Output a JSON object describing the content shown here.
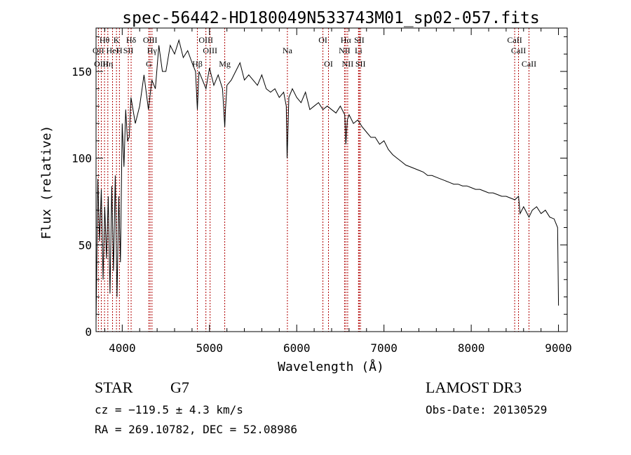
{
  "chart_data": {
    "type": "line",
    "title": "spec-56442-HD180049N533743M01_sp02-057.fits",
    "xlabel": "Wavelength (Å)",
    "ylabel": "Flux (relative)",
    "xlim": [
      3700,
      9100
    ],
    "ylim": [
      0,
      175
    ],
    "xticks": [
      4000,
      5000,
      6000,
      7000,
      8000,
      9000
    ],
    "yticks": [
      0,
      50,
      100,
      150
    ],
    "xtick_labels": [
      "4000",
      "5000",
      "6000",
      "7000",
      "8000",
      "9000"
    ],
    "ytick_labels": [
      "0",
      "50",
      "100",
      "150"
    ],
    "grid": false,
    "series": [
      {
        "x": [
          3700,
          3720,
          3740,
          3760,
          3780,
          3800,
          3820,
          3840,
          3860,
          3880,
          3900,
          3920,
          3940,
          3960,
          3980,
          4000,
          4020,
          4040,
          4060,
          4080,
          4100,
          4150,
          4200,
          4250,
          4300,
          4340,
          4380,
          4420,
          4460,
          4500,
          4550,
          4600,
          4650,
          4700,
          4750,
          4800,
          4840,
          4861,
          4880,
          4920,
          4960,
          5000,
          5050,
          5100,
          5150,
          5175,
          5183,
          5200,
          5250,
          5300,
          5350,
          5400,
          5450,
          5500,
          5550,
          5600,
          5650,
          5700,
          5750,
          5800,
          5850,
          5880,
          5890,
          5896,
          5910,
          5950,
          6000,
          6050,
          6100,
          6150,
          6200,
          6250,
          6300,
          6350,
          6400,
          6450,
          6500,
          6550,
          6563,
          6580,
          6600,
          6650,
          6700,
          6750,
          6800,
          6850,
          6900,
          6950,
          7000,
          7050,
          7100,
          7150,
          7200,
          7250,
          7300,
          7350,
          7400,
          7450,
          7500,
          7550,
          7600,
          7650,
          7700,
          7750,
          7800,
          7850,
          7900,
          7950,
          8000,
          8050,
          8100,
          8150,
          8200,
          8250,
          8300,
          8350,
          8400,
          8450,
          8500,
          8542,
          8560,
          8600,
          8662,
          8700,
          8750,
          8800,
          8850,
          8900,
          8950,
          8990,
          9000
        ],
        "y": [
          5,
          88,
          52,
          82,
          30,
          72,
          42,
          78,
          22,
          84,
          35,
          90,
          20,
          78,
          40,
          120,
          95,
          128,
          110,
          112,
          135,
          120,
          130,
          148,
          128,
          145,
          140,
          165,
          150,
          150,
          165,
          160,
          168,
          158,
          162,
          155,
          150,
          128,
          150,
          145,
          140,
          152,
          142,
          148,
          140,
          118,
          128,
          142,
          145,
          150,
          155,
          145,
          148,
          145,
          142,
          148,
          140,
          138,
          140,
          135,
          138,
          130,
          100,
          110,
          135,
          140,
          135,
          132,
          138,
          128,
          130,
          132,
          128,
          130,
          128,
          126,
          130,
          125,
          108,
          122,
          125,
          120,
          122,
          118,
          115,
          112,
          112,
          108,
          110,
          105,
          102,
          100,
          98,
          96,
          95,
          94,
          93,
          92,
          90,
          90,
          89,
          88,
          87,
          86,
          85,
          85,
          84,
          84,
          83,
          82,
          82,
          81,
          80,
          80,
          79,
          78,
          78,
          77,
          76,
          78,
          68,
          72,
          66,
          70,
          72,
          68,
          70,
          66,
          65,
          60,
          15
        ]
      }
    ],
    "line_marks": [
      {
        "label": "Hθ",
        "x": 3797
      },
      {
        "label": "K",
        "x": 3934
      },
      {
        "label": "H",
        "x": 3968
      },
      {
        "label": "Hδ",
        "x": 4102
      },
      {
        "label": "OII",
        "x": 3727
      },
      {
        "label": "HeI",
        "x": 3889
      },
      {
        "label": "SII",
        "x": 4070
      },
      {
        "label": "OIII",
        "x": 3760
      },
      {
        "label": "Hη",
        "x": 3835
      },
      {
        "label": "OIII",
        "x": 4320
      },
      {
        "label": "Hγ",
        "x": 4341
      },
      {
        "label": "G",
        "x": 4305
      },
      {
        "label": "OIII",
        "x": 4959
      },
      {
        "label": "OIII",
        "x": 5007
      },
      {
        "label": "Hβ",
        "x": 4861
      },
      {
        "label": "Mg",
        "x": 5175
      },
      {
        "label": "Na",
        "x": 5893
      },
      {
        "label": "OI",
        "x": 6300
      },
      {
        "label": "OI",
        "x": 6364
      },
      {
        "label": "Hα",
        "x": 6563
      },
      {
        "label": "SII",
        "x": 6717
      },
      {
        "label": "NII",
        "x": 6548
      },
      {
        "label": "Li",
        "x": 6708
      },
      {
        "label": "NII",
        "x": 6584
      },
      {
        "label": "SII",
        "x": 6731
      },
      {
        "label": "CaII",
        "x": 8498
      },
      {
        "label": "CaII",
        "x": 8542
      },
      {
        "label": "CaII",
        "x": 8662
      }
    ]
  },
  "info": {
    "object_class": "STAR",
    "subclass": "G7",
    "redshift": "cz = −119.5 ± 4.3 km/s",
    "coordinates": "RA = 269.10782, DEC =  52.08986",
    "survey": "LAMOST DR3",
    "obs_date": "Obs-Date: 20130529"
  }
}
